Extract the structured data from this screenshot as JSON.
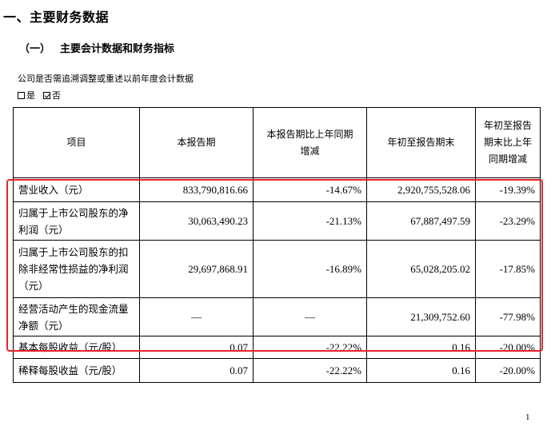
{
  "heading": "一、主要财务数据",
  "subheading": {
    "number": "（一）",
    "title": "主要会计数据和财务指标"
  },
  "note": "公司是否需追溯调整或重述以前年度会计数据",
  "options": [
    {
      "label": "是",
      "checked": false
    },
    {
      "label": "否",
      "checked": true
    }
  ],
  "table": {
    "headers": [
      "项目",
      "本报告期",
      "本报告期比上年同期增减",
      "年初至报告期末",
      "年初至报告期末比上年同期增减"
    ],
    "rows": [
      {
        "item": "营业收入（元）",
        "current": "833,790,816.66",
        "current_change": "-14.67%",
        "ytd": "2,920,755,528.06",
        "ytd_change": "-19.39%"
      },
      {
        "item": "归属于上市公司股东的净利润（元）",
        "current": "30,063,490.23",
        "current_change": "-21.13%",
        "ytd": "67,887,497.59",
        "ytd_change": "-23.29%"
      },
      {
        "item": "归属于上市公司股东的扣除非经常性损益的净利润（元）",
        "current": "29,697,868.91",
        "current_change": "-16.89%",
        "ytd": "65,028,205.02",
        "ytd_change": "-17.85%"
      },
      {
        "item": "经营活动产生的现金流量净额（元）",
        "current": "—",
        "current_change": "—",
        "ytd": "21,309,752.60",
        "ytd_change": "-77.98%"
      },
      {
        "item": "基本每股收益（元/股）",
        "current": "0.07",
        "current_change": "-22.22%",
        "ytd": "0.16",
        "ytd_change": "-20.00%"
      },
      {
        "item": "稀释每股收益（元/股）",
        "current": "0.07",
        "current_change": "-22.22%",
        "ytd": "0.16",
        "ytd_change": "-20.00%"
      }
    ]
  },
  "highlight_color": "#e8242a",
  "page_number": "1"
}
